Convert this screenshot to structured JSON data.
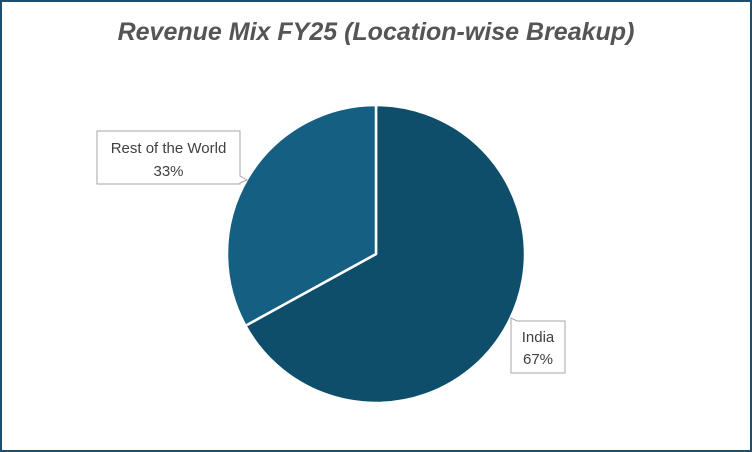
{
  "chart_data": {
    "type": "pie",
    "title": "Revenue Mix FY25 (Location-wise Breakup)",
    "slices": [
      {
        "label": "India",
        "value": 67,
        "value_label": "67%",
        "color": "#0f4e6b"
      },
      {
        "label": "Rest of the World",
        "value": 33,
        "value_label": "33%",
        "color": "#155f82"
      }
    ],
    "start_angle_deg": 0,
    "direction": "clockwise",
    "legend": "none"
  },
  "colors": {
    "border": "#1b4f6b",
    "title": "#555555",
    "callout_border": "#a6a6a6",
    "slice_separator": "#ffffff"
  }
}
